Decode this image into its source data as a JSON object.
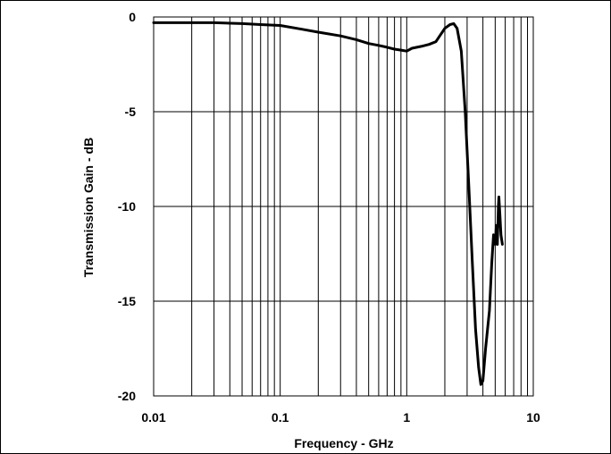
{
  "chart_data": {
    "type": "line",
    "title": "",
    "xlabel": "Frequency - GHz",
    "ylabel": "Transmission Gain - dB",
    "xscale": "log",
    "xlim": [
      0.01,
      10
    ],
    "ylim": [
      -20,
      0
    ],
    "xticks": [
      0.01,
      0.1,
      1,
      10
    ],
    "xtick_labels": [
      "0.01",
      "0.1",
      "1",
      "10"
    ],
    "yticks": [
      0,
      -5,
      -10,
      -15,
      -20
    ],
    "ytick_labels": [
      "0",
      "-5",
      "-10",
      "-15",
      "-20"
    ],
    "grid": true,
    "legend": "none",
    "line_color": "#000000",
    "series": [
      {
        "x": [
          0.01,
          0.02,
          0.03,
          0.05,
          0.07,
          0.1,
          0.15,
          0.2,
          0.3,
          0.4,
          0.5,
          0.6,
          0.7,
          0.8,
          0.9,
          1.0,
          1.1,
          1.3,
          1.5,
          1.7,
          2.0,
          2.2,
          2.35,
          2.5,
          2.7,
          2.9,
          3.1,
          3.3,
          3.5,
          3.7,
          3.85,
          4.0,
          4.2,
          4.5,
          4.7,
          4.85,
          5.0,
          5.1,
          5.2,
          5.3,
          5.35,
          5.45,
          5.55,
          5.7
        ],
        "y": [
          -0.3,
          -0.3,
          -0.3,
          -0.35,
          -0.4,
          -0.45,
          -0.65,
          -0.8,
          -1.0,
          -1.2,
          -1.4,
          -1.5,
          -1.6,
          -1.7,
          -1.75,
          -1.8,
          -1.65,
          -1.55,
          -1.45,
          -1.3,
          -0.6,
          -0.4,
          -0.35,
          -0.6,
          -1.8,
          -5.0,
          -9.0,
          -13.0,
          -16.5,
          -18.5,
          -19.4,
          -19.2,
          -17.5,
          -15.5,
          -13.0,
          -11.5,
          -12.0,
          -11.0,
          -12.0,
          -10.0,
          -9.5,
          -10.5,
          -11.5,
          -12.0
        ]
      }
    ]
  }
}
